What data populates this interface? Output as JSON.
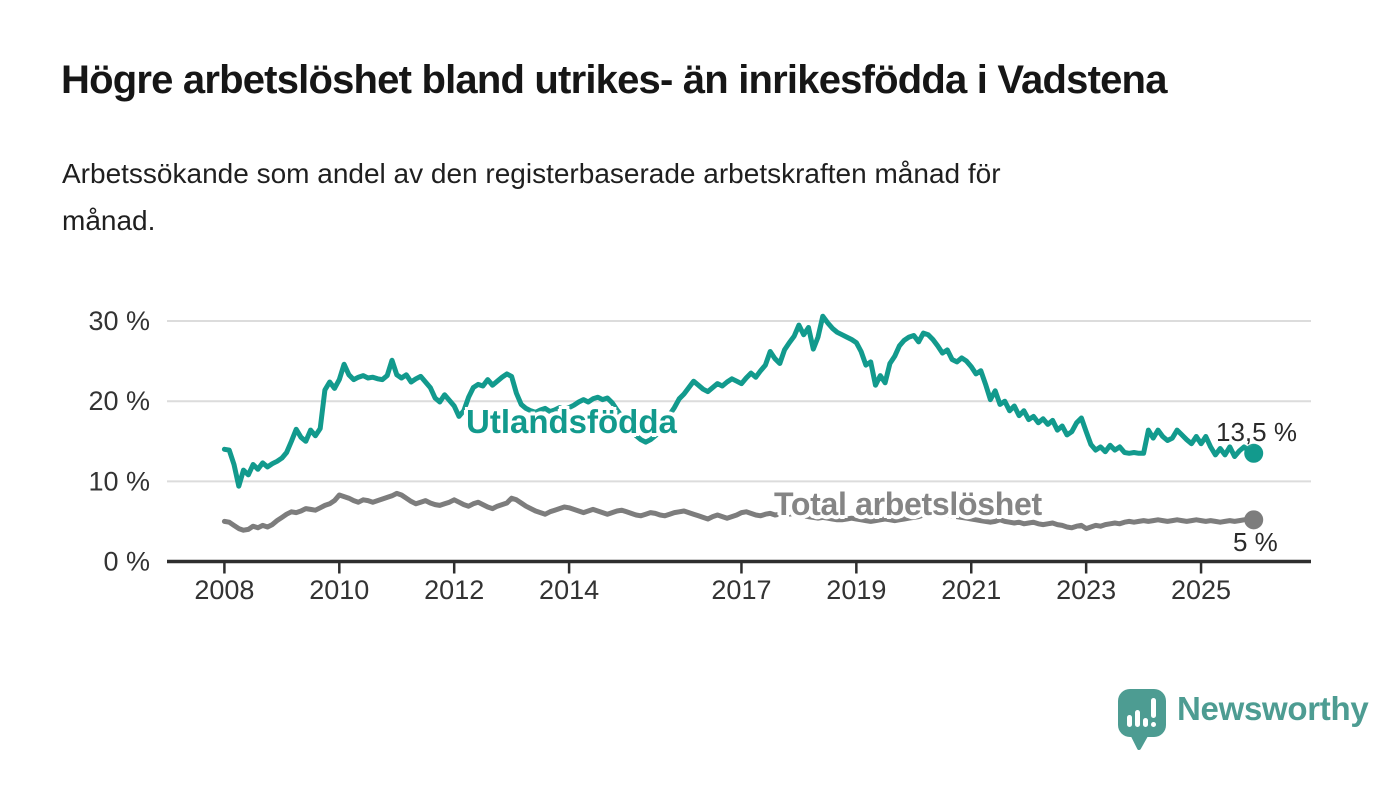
{
  "footer": {
    "brand": "Newsworthy"
  },
  "chart_data": {
    "type": "line",
    "title": "Högre arbetslöshet bland utrikes- än inrikesfödda i Vadstena",
    "subtitle_lines": [
      "Arbetssökande som andel av den registerbaserade arbetskraften månad för",
      "månad."
    ],
    "unit": "%",
    "x_start_year": 2008,
    "points_per_year": 12,
    "x_tick_years": [
      2008,
      2010,
      2012,
      2014,
      2017,
      2019,
      2021,
      2023,
      2025
    ],
    "y_ticks": [
      {
        "value": 0,
        "label": "0 %"
      },
      {
        "value": 10,
        "label": "10 %"
      },
      {
        "value": 20,
        "label": "20 %"
      },
      {
        "value": 30,
        "label": "30 %"
      }
    ],
    "ylim": [
      0,
      32.5
    ],
    "grid": true,
    "legend_position": "inline",
    "colors": {
      "grid": "#DCDCDC",
      "axis": "#2E2E2E",
      "tick_text": "#333333",
      "brand_teal": "#4D9C92"
    },
    "series": [
      {
        "name": "Utlandsfödda",
        "color": "#129A8D",
        "end_label": "13,5 %",
        "end_value": 13.5,
        "values": [
          14.0,
          13.9,
          12.1,
          9.4,
          11.4,
          10.8,
          12.1,
          11.5,
          12.3,
          11.8,
          12.2,
          12.5,
          12.9,
          13.6,
          15.0,
          16.5,
          15.5,
          15.0,
          16.4,
          15.7,
          16.6,
          21.4,
          22.4,
          21.6,
          22.7,
          24.6,
          23.3,
          22.7,
          23.0,
          23.2,
          22.9,
          23.0,
          22.8,
          22.7,
          23.2,
          25.1,
          23.3,
          22.9,
          23.3,
          22.4,
          22.8,
          23.1,
          22.4,
          21.7,
          20.4,
          19.9,
          20.8,
          20.1,
          19.4,
          18.1,
          18.8,
          20.5,
          21.7,
          22.1,
          21.9,
          22.7,
          22.0,
          22.5,
          23.0,
          23.4,
          23.1,
          21.0,
          19.6,
          19.1,
          18.8,
          18.6,
          18.9,
          19.1,
          18.7,
          18.9,
          19.2,
          19.0,
          19.2,
          19.5,
          19.9,
          20.2,
          19.9,
          20.3,
          20.5,
          20.2,
          20.4,
          19.8,
          18.9,
          18.1,
          17.2,
          16.4,
          15.7,
          15.2,
          14.9,
          15.2,
          15.7,
          16.3,
          17.2,
          18.3,
          19.2,
          20.3,
          20.9,
          21.7,
          22.5,
          22.0,
          21.5,
          21.2,
          21.7,
          22.2,
          21.9,
          22.4,
          22.8,
          22.5,
          22.2,
          22.9,
          23.5,
          23.0,
          23.8,
          24.5,
          26.2,
          25.3,
          24.7,
          26.4,
          27.3,
          28.1,
          29.5,
          28.3,
          29.2,
          26.5,
          28.0,
          30.6,
          29.8,
          29.1,
          28.6,
          28.3,
          28.0,
          27.7,
          27.3,
          26.2,
          24.5,
          24.9,
          22.0,
          23.2,
          22.3,
          24.7,
          25.6,
          26.9,
          27.6,
          28.0,
          28.2,
          27.4,
          28.5,
          28.3,
          27.7,
          26.9,
          26.0,
          26.4,
          25.2,
          24.9,
          25.4,
          25.0,
          24.3,
          23.4,
          23.8,
          22.1,
          20.2,
          21.3,
          19.6,
          20.0,
          18.8,
          19.4,
          18.2,
          18.8,
          17.7,
          18.1,
          17.3,
          17.8,
          17.1,
          17.6,
          16.4,
          16.9,
          15.8,
          16.2,
          17.3,
          17.9,
          16.2,
          14.6,
          13.9,
          14.3,
          13.7,
          14.5,
          13.9,
          14.3,
          13.6,
          13.5,
          13.6,
          13.5,
          13.5,
          16.4,
          15.4,
          16.4,
          15.6,
          15.1,
          15.4,
          16.4,
          15.8,
          15.2,
          14.7,
          15.6,
          14.7,
          15.6,
          14.3,
          13.3,
          14.1,
          13.3,
          14.3,
          13.1,
          13.8,
          14.3,
          13.9,
          13.5
        ]
      },
      {
        "name": "Total arbetslöshet",
        "color": "#7D7D7D",
        "end_label": "5 %",
        "end_value": 5.2,
        "values": [
          5.0,
          4.9,
          4.5,
          4.1,
          3.9,
          4.0,
          4.4,
          4.2,
          4.5,
          4.3,
          4.6,
          5.1,
          5.5,
          5.9,
          6.2,
          6.1,
          6.3,
          6.6,
          6.5,
          6.4,
          6.7,
          7.0,
          7.2,
          7.6,
          8.3,
          8.1,
          7.9,
          7.6,
          7.4,
          7.7,
          7.6,
          7.4,
          7.6,
          7.8,
          8.0,
          8.2,
          8.5,
          8.3,
          7.9,
          7.5,
          7.2,
          7.4,
          7.6,
          7.3,
          7.1,
          7.0,
          7.2,
          7.4,
          7.7,
          7.4,
          7.1,
          6.9,
          7.2,
          7.4,
          7.1,
          6.8,
          6.6,
          6.9,
          7.1,
          7.3,
          7.9,
          7.7,
          7.3,
          6.9,
          6.6,
          6.3,
          6.1,
          5.9,
          6.2,
          6.4,
          6.6,
          6.8,
          6.7,
          6.5,
          6.3,
          6.1,
          6.3,
          6.5,
          6.3,
          6.1,
          5.9,
          6.1,
          6.3,
          6.4,
          6.2,
          6.0,
          5.8,
          5.7,
          5.9,
          6.1,
          6.0,
          5.8,
          5.7,
          5.9,
          6.1,
          6.2,
          6.3,
          6.1,
          5.9,
          5.7,
          5.5,
          5.3,
          5.6,
          5.8,
          5.6,
          5.4,
          5.6,
          5.8,
          6.1,
          6.2,
          6.0,
          5.8,
          5.7,
          5.9,
          6.0,
          5.8,
          5.9,
          6.0,
          5.9,
          6.0,
          5.8,
          5.7,
          5.6,
          5.5,
          5.4,
          5.5,
          5.4,
          5.3,
          5.2,
          5.2,
          5.3,
          5.4,
          5.3,
          5.2,
          5.1,
          5.0,
          5.1,
          5.2,
          5.3,
          5.2,
          5.1,
          5.2,
          5.3,
          5.4,
          5.5,
          5.6,
          5.8,
          6.0,
          6.1,
          6.0,
          5.9,
          5.8,
          5.7,
          5.6,
          5.5,
          5.4,
          5.3,
          5.2,
          5.1,
          5.0,
          4.9,
          5.0,
          5.2,
          5.0,
          4.9,
          4.8,
          4.9,
          4.7,
          4.8,
          4.9,
          4.7,
          4.6,
          4.7,
          4.8,
          4.6,
          4.5,
          4.3,
          4.2,
          4.4,
          4.5,
          4.1,
          4.3,
          4.5,
          4.4,
          4.6,
          4.7,
          4.8,
          4.7,
          4.9,
          5.0,
          4.9,
          5.0,
          5.1,
          5.0,
          5.1,
          5.2,
          5.1,
          5.0,
          5.1,
          5.2,
          5.1,
          5.0,
          5.1,
          5.2,
          5.1,
          5.0,
          5.1,
          5.0,
          4.9,
          5.0,
          5.1,
          5.0,
          5.1,
          5.2,
          5.3,
          5.2
        ]
      }
    ]
  }
}
